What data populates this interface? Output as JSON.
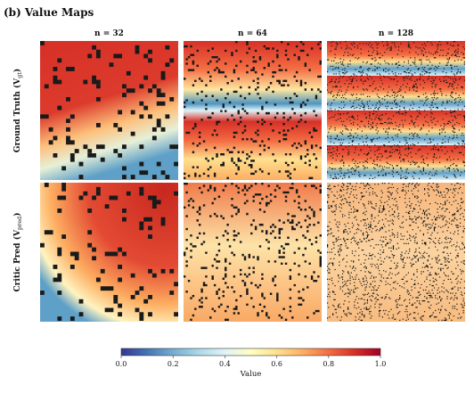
{
  "chart_data": {
    "type": "heatmap-grid",
    "title": "(b) Value Maps",
    "columns": [
      "n = 32",
      "n = 64",
      "n = 128"
    ],
    "grid_sizes": [
      32,
      64,
      128
    ],
    "rows": [
      {
        "prefix": "Ground Truth (V",
        "subscript": "gt",
        "suffix": ")"
      },
      {
        "prefix": "Critic Pred (V",
        "subscript": "pred",
        "suffix": ")"
      }
    ],
    "colorbar": {
      "label": "Value",
      "xlim": [
        0,
        1
      ],
      "xticks": [
        {
          "value": 0,
          "label": "0.0"
        },
        {
          "value": 0.2,
          "label": "0.2"
        },
        {
          "value": 0.4,
          "label": "0.4"
        },
        {
          "value": 0.6,
          "label": "0.6"
        },
        {
          "value": 0.8,
          "label": "0.8"
        },
        {
          "value": 1,
          "label": "1.0"
        }
      ],
      "colors": [
        "#313695",
        "#4575b4",
        "#74add1",
        "#abd9e9",
        "#e0f3f8",
        "#ffffbf",
        "#fee090",
        "#fdae61",
        "#f46d43",
        "#d73027",
        "#a50026"
      ]
    }
  }
}
